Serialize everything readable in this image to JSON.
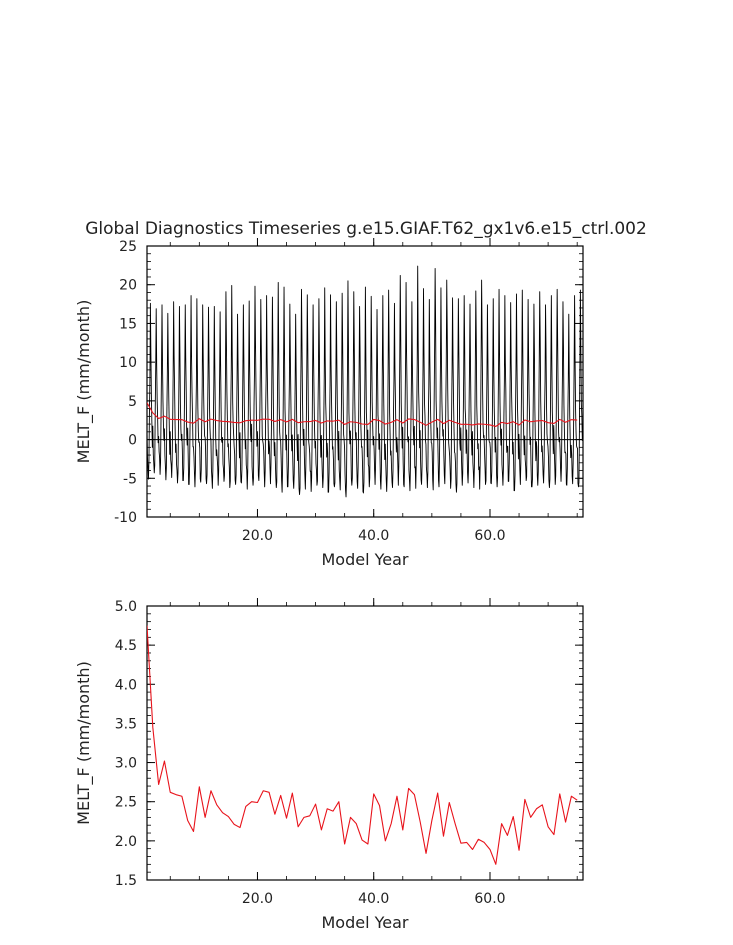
{
  "title": "Global Diagnostics Timeseries g.e15.GIAF.T62_gx1v6.e15_ctrl.002",
  "chart_data": [
    {
      "type": "line",
      "xlabel": "Model Year",
      "ylabel": "MELT_F (mm/month)",
      "xlim": [
        1,
        76
      ],
      "ylim": [
        -10,
        25
      ],
      "xticks": [
        20,
        40,
        60
      ],
      "xtick_labels": [
        "20.0",
        "40.0",
        "60.0"
      ],
      "yticks": [
        -10,
        -5,
        0,
        5,
        10,
        15,
        20,
        25
      ],
      "ytick_labels": [
        "-10",
        "-5",
        "0",
        "5",
        "10",
        "15",
        "20",
        "25"
      ],
      "zero_line": true,
      "grid": false,
      "legend": "none",
      "series": [
        {
          "color": "#000000",
          "x_start": 1,
          "x_step": 0.0833,
          "annual_max": [
            17.6,
            16.9,
            17.4,
            16.3,
            17.8,
            17.2,
            17.4,
            18.6,
            18.2,
            17.4,
            17.1,
            17.2,
            16.5,
            19.1,
            19.9,
            16.2,
            17.4,
            17.9,
            19.8,
            18.1,
            18.6,
            18.4,
            20.3,
            19.7,
            17.5,
            16.2,
            19.4,
            18.7,
            17.4,
            18.2,
            19.6,
            18.7,
            17.8,
            18.9,
            20.5,
            19.1,
            17.2,
            19.7,
            18.5,
            16.8,
            18.6,
            19.3,
            17.6,
            21.2,
            20.3,
            17.8,
            22.4,
            19.5,
            18.1,
            22.1,
            19.6,
            20.6,
            18.3,
            18.2,
            18.6,
            17.5,
            19.2,
            20.6,
            17.4,
            18.2,
            19.4,
            18.6,
            17.7,
            18.8,
            19.3,
            18.1,
            17.5,
            19.1,
            17.4,
            18.6,
            19.4,
            17.8,
            16.2,
            18.6,
            19.3
          ],
          "annual_min": [
            -5.1,
            -4.3,
            -4.5,
            -5.2,
            -4.9,
            -5.6,
            -5.3,
            -5.8,
            -6.1,
            -5.5,
            -5.7,
            -6.3,
            -5.9,
            -5.4,
            -6.2,
            -5.8,
            -5.6,
            -6.4,
            -5.9,
            -5.3,
            -6.1,
            -5.7,
            -6.2,
            -6.8,
            -6.1,
            -6.3,
            -7.1,
            -6.4,
            -6.7,
            -5.9,
            -6.2,
            -6.8,
            -6.1,
            -6.5,
            -7.4,
            -5.9,
            -6.3,
            -6.9,
            -6.1,
            -5.8,
            -6.4,
            -6.7,
            -6.2,
            -5.9,
            -6.1,
            -6.6,
            -6.3,
            -5.8,
            -6.2,
            -6.5,
            -6.1,
            -5.7,
            -6.3,
            -6.8,
            -5.9,
            -5.6,
            -6.2,
            -6.4,
            -5.8,
            -5.7,
            -6.1,
            -5.9,
            -5.4,
            -6.6,
            -5.8,
            -5.3,
            -6.1,
            -5.9,
            -5.6,
            -6.2,
            -5.8,
            -5.4,
            -5.9,
            -5.7,
            -6.1
          ]
        },
        {
          "color": "#e8131b",
          "x": [
            1,
            2,
            3,
            4,
            5,
            6,
            7,
            8,
            9,
            10,
            11,
            12,
            13,
            14,
            15,
            16,
            17,
            18,
            19,
            20,
            21,
            22,
            23,
            24,
            25,
            26,
            27,
            28,
            29,
            30,
            31,
            32,
            33,
            34,
            35,
            36,
            37,
            38,
            39,
            40,
            41,
            42,
            43,
            44,
            45,
            46,
            47,
            48,
            49,
            50,
            51,
            52,
            53,
            54,
            55,
            56,
            57,
            58,
            59,
            60,
            61,
            62,
            63,
            64,
            65,
            66,
            67,
            68,
            69,
            70,
            71,
            72,
            73,
            74,
            75
          ],
          "y": [
            4.75,
            3.45,
            2.72,
            3.02,
            2.62,
            2.59,
            2.57,
            2.26,
            2.12,
            2.69,
            2.3,
            2.64,
            2.46,
            2.36,
            2.31,
            2.21,
            2.17,
            2.44,
            2.5,
            2.49,
            2.64,
            2.62,
            2.34,
            2.58,
            2.29,
            2.61,
            2.18,
            2.3,
            2.32,
            2.47,
            2.14,
            2.41,
            2.38,
            2.5,
            1.96,
            2.3,
            2.22,
            2.01,
            1.96,
            2.6,
            2.45,
            2.0,
            2.22,
            2.57,
            2.14,
            2.67,
            2.59,
            2.24,
            1.84,
            2.26,
            2.61,
            2.06,
            2.49,
            2.22,
            1.97,
            1.98,
            1.89,
            2.02,
            1.98,
            1.89,
            1.7,
            2.22,
            2.07,
            2.31,
            1.88,
            2.53,
            2.3,
            2.41,
            2.46,
            2.18,
            2.08,
            2.6,
            2.24,
            2.57,
            2.52
          ]
        }
      ]
    },
    {
      "type": "line",
      "xlabel": "Model Year",
      "ylabel": "MELT_F (mm/month)",
      "xlim": [
        1,
        76
      ],
      "ylim": [
        1.5,
        5.0
      ],
      "xticks": [
        20,
        40,
        60
      ],
      "xtick_labels": [
        "20.0",
        "40.0",
        "60.0"
      ],
      "yticks": [
        1.5,
        2.0,
        2.5,
        3.0,
        3.5,
        4.0,
        4.5,
        5.0
      ],
      "ytick_labels": [
        "1.5",
        "2.0",
        "2.5",
        "3.0",
        "3.5",
        "4.0",
        "4.5",
        "5.0"
      ],
      "grid": false,
      "legend": "none",
      "series": [
        {
          "color": "#e8131b",
          "x": [
            1,
            2,
            3,
            4,
            5,
            6,
            7,
            8,
            9,
            10,
            11,
            12,
            13,
            14,
            15,
            16,
            17,
            18,
            19,
            20,
            21,
            22,
            23,
            24,
            25,
            26,
            27,
            28,
            29,
            30,
            31,
            32,
            33,
            34,
            35,
            36,
            37,
            38,
            39,
            40,
            41,
            42,
            43,
            44,
            45,
            46,
            47,
            48,
            49,
            50,
            51,
            52,
            53,
            54,
            55,
            56,
            57,
            58,
            59,
            60,
            61,
            62,
            63,
            64,
            65,
            66,
            67,
            68,
            69,
            70,
            71,
            72,
            73,
            74,
            75
          ],
          "y": [
            4.75,
            3.45,
            2.72,
            3.02,
            2.62,
            2.59,
            2.57,
            2.26,
            2.12,
            2.69,
            2.3,
            2.64,
            2.46,
            2.36,
            2.31,
            2.21,
            2.17,
            2.44,
            2.5,
            2.49,
            2.64,
            2.62,
            2.34,
            2.58,
            2.29,
            2.61,
            2.18,
            2.3,
            2.32,
            2.47,
            2.14,
            2.41,
            2.38,
            2.5,
            1.96,
            2.3,
            2.22,
            2.01,
            1.96,
            2.6,
            2.45,
            2.0,
            2.22,
            2.57,
            2.14,
            2.67,
            2.59,
            2.24,
            1.84,
            2.26,
            2.61,
            2.06,
            2.49,
            2.22,
            1.97,
            1.98,
            1.89,
            2.02,
            1.98,
            1.89,
            1.7,
            2.22,
            2.07,
            2.31,
            1.88,
            2.53,
            2.3,
            2.41,
            2.46,
            2.18,
            2.08,
            2.6,
            2.24,
            2.57,
            2.52
          ]
        }
      ]
    }
  ]
}
